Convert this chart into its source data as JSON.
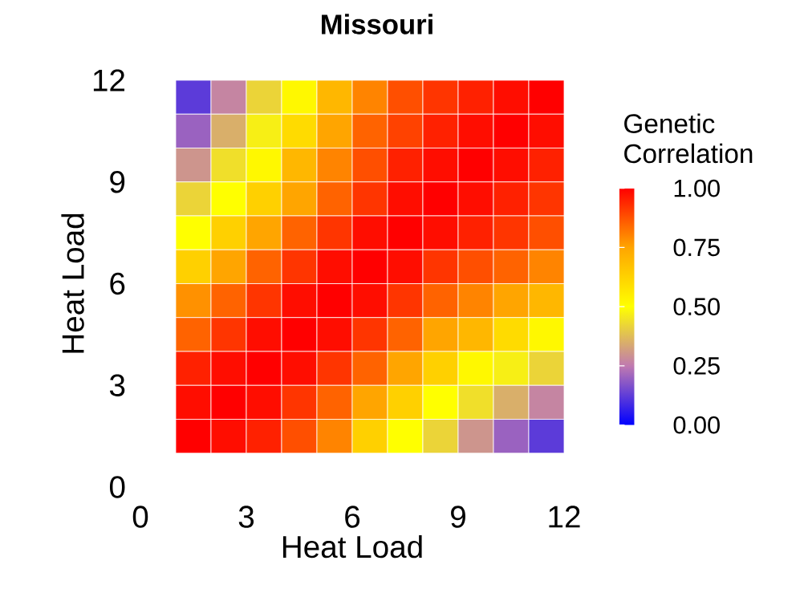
{
  "chart_data": {
    "type": "heatmap",
    "title": "Missouri",
    "xlabel": "Heat Load",
    "ylabel": "Heat Load",
    "clabel": "Genetic Correlation",
    "x": [
      1.5,
      2.5,
      3.5,
      4.5,
      5.5,
      6.5,
      7.5,
      8.5,
      9.5,
      10.5,
      11.5
    ],
    "y": [
      11.5,
      10.5,
      9.5,
      8.5,
      7.5,
      6.5,
      5.5,
      4.5,
      3.5,
      2.5,
      1.5
    ],
    "cells": [
      [
        0.12,
        0.27,
        0.42,
        0.52,
        0.7,
        0.8,
        0.88,
        0.92,
        0.95,
        0.98,
        1.0
      ],
      [
        0.2,
        0.35,
        0.47,
        0.6,
        0.75,
        0.85,
        0.9,
        0.95,
        0.98,
        1.0,
        0.98
      ],
      [
        0.3,
        0.44,
        0.52,
        0.7,
        0.8,
        0.88,
        0.95,
        0.98,
        1.0,
        0.98,
        0.95
      ],
      [
        0.42,
        0.5,
        0.63,
        0.75,
        0.85,
        0.92,
        0.98,
        1.0,
        0.98,
        0.95,
        0.92
      ],
      [
        0.5,
        0.63,
        0.75,
        0.85,
        0.92,
        0.98,
        1.0,
        0.98,
        0.95,
        0.92,
        0.88
      ],
      [
        0.63,
        0.75,
        0.85,
        0.92,
        0.98,
        1.0,
        0.98,
        0.92,
        0.88,
        0.85,
        0.8
      ],
      [
        0.78,
        0.85,
        0.92,
        0.98,
        1.0,
        0.98,
        0.92,
        0.85,
        0.8,
        0.75,
        0.7
      ],
      [
        0.85,
        0.92,
        0.98,
        1.0,
        0.98,
        0.92,
        0.85,
        0.75,
        0.7,
        0.6,
        0.52
      ],
      [
        0.95,
        0.98,
        1.0,
        0.98,
        0.92,
        0.85,
        0.75,
        0.63,
        0.52,
        0.47,
        0.42
      ],
      [
        0.98,
        1.0,
        0.98,
        0.92,
        0.85,
        0.75,
        0.63,
        0.5,
        0.44,
        0.35,
        0.27
      ],
      [
        1.0,
        0.98,
        0.95,
        0.88,
        0.8,
        0.63,
        0.5,
        0.42,
        0.3,
        0.2,
        0.12
      ]
    ],
    "xlim": [
      0,
      12
    ],
    "ylim": [
      0,
      12
    ],
    "xticks": [
      0,
      3,
      6,
      9,
      12
    ],
    "yticks": [
      0,
      3,
      6,
      9,
      12
    ],
    "clim": [
      0,
      1
    ],
    "cticks": [
      {
        "value": 0,
        "label": "0.00"
      },
      {
        "value": 0.25,
        "label": "0.25"
      },
      {
        "value": 0.5,
        "label": "0.50"
      },
      {
        "value": 0.75,
        "label": "0.75"
      },
      {
        "value": 1,
        "label": "1.00"
      }
    ]
  }
}
